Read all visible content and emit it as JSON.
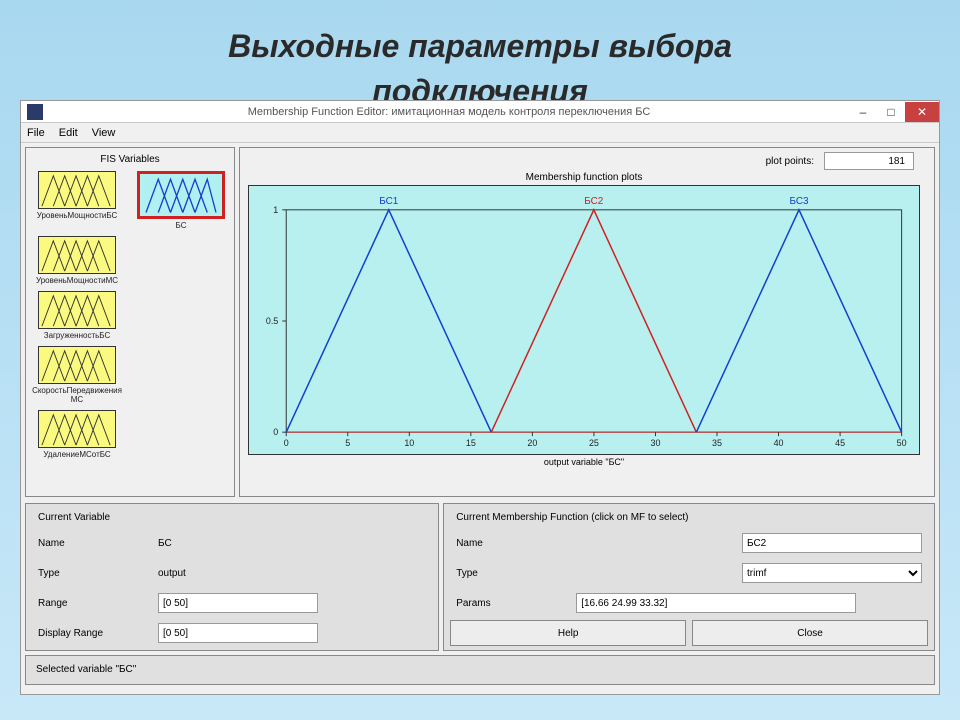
{
  "slide": {
    "title": "Выходные параметры выбора",
    "subtitle": "подключения"
  },
  "window": {
    "title": "Membership Function Editor: имитационная модель контроля переключения БС",
    "menu": {
      "file": "File",
      "edit": "Edit",
      "view": "View"
    }
  },
  "fis": {
    "label": "FIS Variables",
    "inputs": [
      {
        "name": "УровеньМощностиБС"
      },
      {
        "name": "УровеньМощностиМС"
      },
      {
        "name": "ЗагруженностьБС"
      },
      {
        "name": "СкоростьПередвиженияМС"
      },
      {
        "name": "УдалениеМСотБС"
      }
    ],
    "output": {
      "name": "БС"
    }
  },
  "plot": {
    "points_label": "plot points:",
    "points_value": "181",
    "title": "Membership function plots",
    "xlabel": "output variable \"БС\"",
    "mf_labels": [
      "БС1",
      "БС2",
      "БС3"
    ],
    "xlim": [
      0,
      50
    ],
    "ylim": [
      0,
      1
    ],
    "xticks": [
      0,
      5,
      10,
      15,
      20,
      25,
      30,
      35,
      40,
      45,
      50
    ],
    "yticks": [
      0,
      0.5,
      1
    ],
    "bg_color": "#b8f0f0",
    "series": [
      {
        "label": "БС1",
        "color": "#1040d0",
        "points": [
          [
            0,
            0
          ],
          [
            8.33,
            1
          ],
          [
            16.66,
            0
          ]
        ]
      },
      {
        "label": "БС2",
        "color": "#d02020",
        "points": [
          [
            16.66,
            0
          ],
          [
            24.99,
            1
          ],
          [
            33.32,
            0
          ]
        ]
      },
      {
        "label": "БС3",
        "color": "#1040d0",
        "points": [
          [
            33.32,
            0
          ],
          [
            41.66,
            1
          ],
          [
            50,
            0
          ]
        ]
      }
    ]
  },
  "current_var": {
    "title": "Current Variable",
    "name_label": "Name",
    "name_value": "БС",
    "type_label": "Type",
    "type_value": "output",
    "range_label": "Range",
    "range_value": "[0 50]",
    "disp_range_label": "Display Range",
    "disp_range_value": "[0 50]"
  },
  "current_mf": {
    "title": "Current Membership Function (click on MF to select)",
    "name_label": "Name",
    "name_value": "БС2",
    "type_label": "Type",
    "type_value": "trimf",
    "params_label": "Params",
    "params_value": "[16.66 24.99 33.32]"
  },
  "buttons": {
    "help": "Help",
    "close": "Close"
  },
  "status": "Selected variable \"БС\""
}
